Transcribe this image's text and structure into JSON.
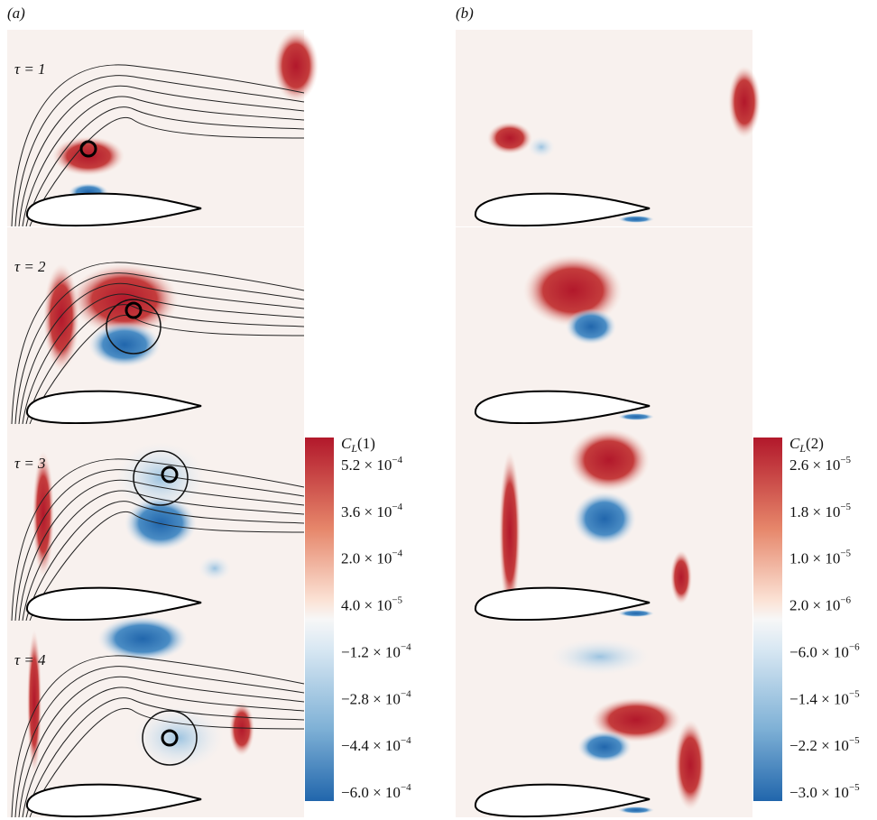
{
  "panels": [
    {
      "label": "(a)",
      "frames": [
        "τ = 1",
        "τ = 2",
        "τ = 3",
        "τ = 4"
      ],
      "colorbar": {
        "symbol": "C",
        "subscript": "L",
        "index": "(1)",
        "ticks": [
          {
            "mantissa": "5.2 × 10",
            "exponent": "−4"
          },
          {
            "mantissa": "3.6 × 10",
            "exponent": "−4"
          },
          {
            "mantissa": "2.0 × 10",
            "exponent": "−4"
          },
          {
            "mantissa": "4.0 × 10",
            "exponent": "−5"
          },
          {
            "mantissa": "−1.2 × 10",
            "exponent": "−4"
          },
          {
            "mantissa": "−2.8 × 10",
            "exponent": "−4"
          },
          {
            "mantissa": "−4.4 × 10",
            "exponent": "−4"
          },
          {
            "mantissa": "−6.0 × 10",
            "exponent": "−4"
          }
        ]
      }
    },
    {
      "label": "(b)",
      "colorbar": {
        "symbol": "C",
        "subscript": "L",
        "index": "(2)",
        "ticks": [
          {
            "mantissa": "2.6 × 10",
            "exponent": "−5"
          },
          {
            "mantissa": "1.8 × 10",
            "exponent": "−5"
          },
          {
            "mantissa": "1.0 × 10",
            "exponent": "−5"
          },
          {
            "mantissa": "2.0 × 10",
            "exponent": "−6"
          },
          {
            "mantissa": "−6.0 × 10",
            "exponent": "−6"
          },
          {
            "mantissa": "−1.4 × 10",
            "exponent": "−5"
          },
          {
            "mantissa": "−2.2 × 10",
            "exponent": "−5"
          },
          {
            "mantissa": "−3.0 × 10",
            "exponent": "−5"
          }
        ]
      }
    }
  ]
}
